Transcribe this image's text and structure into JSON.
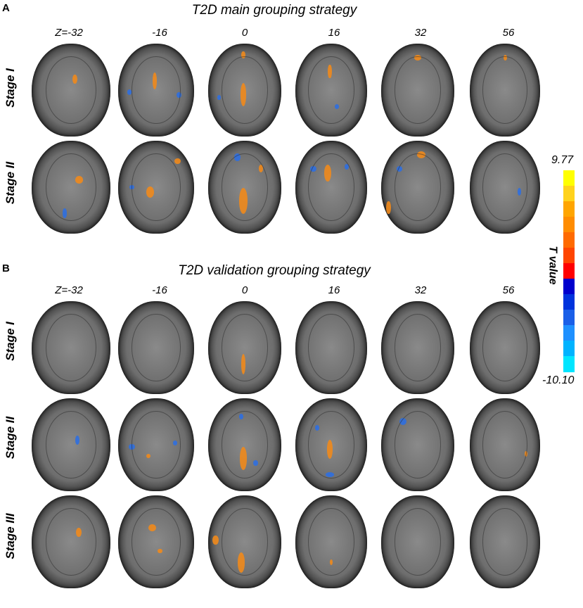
{
  "panels": [
    {
      "letter": "A",
      "title": "T2D main grouping strategy",
      "z_labels": [
        "Z=-32",
        "-16",
        "0",
        "16",
        "32",
        "56"
      ],
      "stages": [
        "Stage I",
        "Stage II"
      ]
    },
    {
      "letter": "B",
      "title": "T2D validation grouping strategy",
      "z_labels": [
        "Z=-32",
        "-16",
        "0",
        "16",
        "32",
        "56"
      ],
      "stages": [
        "Stage I",
        "Stage II",
        "Stage III"
      ]
    }
  ],
  "colorbar": {
    "max": "9.77",
    "min": "-10.10",
    "label": "T value",
    "colors": [
      "#ffff00",
      "#ffd21c",
      "#ffa500",
      "#ff8c00",
      "#ff6a00",
      "#ff4500",
      "#ff0000",
      "#0000cd",
      "#0033dd",
      "#1a5fe8",
      "#1e90ff",
      "#00b3ff",
      "#00e5ff"
    ]
  },
  "colors": {
    "positive": "#f08a1c",
    "negative": "#2f6fe0"
  }
}
